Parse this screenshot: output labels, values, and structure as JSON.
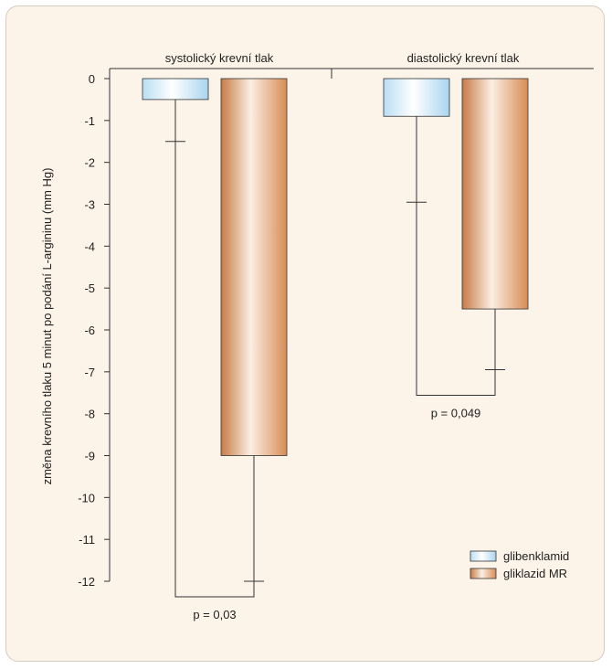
{
  "chart_data": {
    "type": "bar",
    "ylabel": "změna krevního tlaku 5 minut po podání L-argininu (mm Hg)",
    "ylim": [
      -12,
      0
    ],
    "yticks": [
      0,
      -1,
      -2,
      -3,
      -4,
      -5,
      -6,
      -7,
      -8,
      -9,
      -10,
      -11,
      -12
    ],
    "groups": [
      "systolický krevní tlak",
      "diastolický krevní tlak"
    ],
    "series": [
      {
        "name": "glibenklamid",
        "values": [
          -0.5,
          -0.9
        ],
        "error": [
          1.0,
          2.05
        ],
        "color": "#d4ecf8"
      },
      {
        "name": "gliklazid MR",
        "values": [
          -9.0,
          -5.5
        ],
        "error": [
          3.0,
          1.45
        ],
        "color": "#d9925a"
      }
    ],
    "significance": [
      {
        "group": 0,
        "label": "p = 0,03"
      },
      {
        "group": 1,
        "label": "p = 0,049"
      }
    ],
    "legend_position": "bottom-right"
  }
}
